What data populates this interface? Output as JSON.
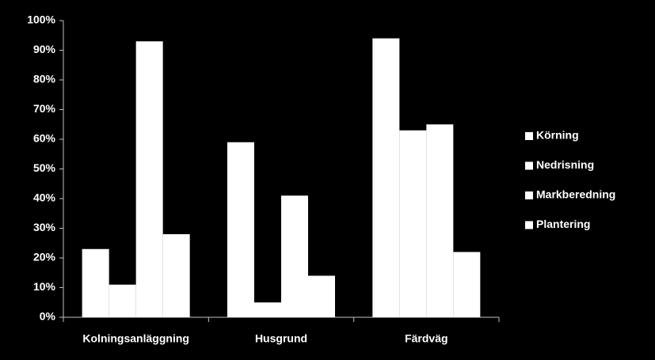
{
  "chart_data": {
    "type": "bar",
    "categories": [
      "Kolningsanläggning",
      "Husgrund",
      "Färdväg"
    ],
    "series": [
      {
        "name": "Körning",
        "color": "#ffffff",
        "values": [
          23,
          59,
          94
        ]
      },
      {
        "name": "Nedrisning",
        "color": "#ffffff",
        "values": [
          11,
          5,
          63
        ]
      },
      {
        "name": "Markberedning",
        "color": "#ffffff",
        "values": [
          93,
          41,
          65
        ]
      },
      {
        "name": "Plantering",
        "color": "#ffffff",
        "values": [
          28,
          14,
          22
        ]
      }
    ],
    "ylim": [
      0,
      100
    ],
    "yticks": [
      {
        "value": 0,
        "label": "0%"
      },
      {
        "value": 10,
        "label": "10%"
      },
      {
        "value": 20,
        "label": "20%"
      },
      {
        "value": 30,
        "label": "30%"
      },
      {
        "value": 40,
        "label": "40%"
      },
      {
        "value": 50,
        "label": "50%"
      },
      {
        "value": 60,
        "label": "60%"
      },
      {
        "value": 70,
        "label": "70%"
      },
      {
        "value": 80,
        "label": "80%"
      },
      {
        "value": 90,
        "label": "90%"
      },
      {
        "value": 100,
        "label": "100%"
      }
    ],
    "grid": false,
    "legend": "right"
  }
}
